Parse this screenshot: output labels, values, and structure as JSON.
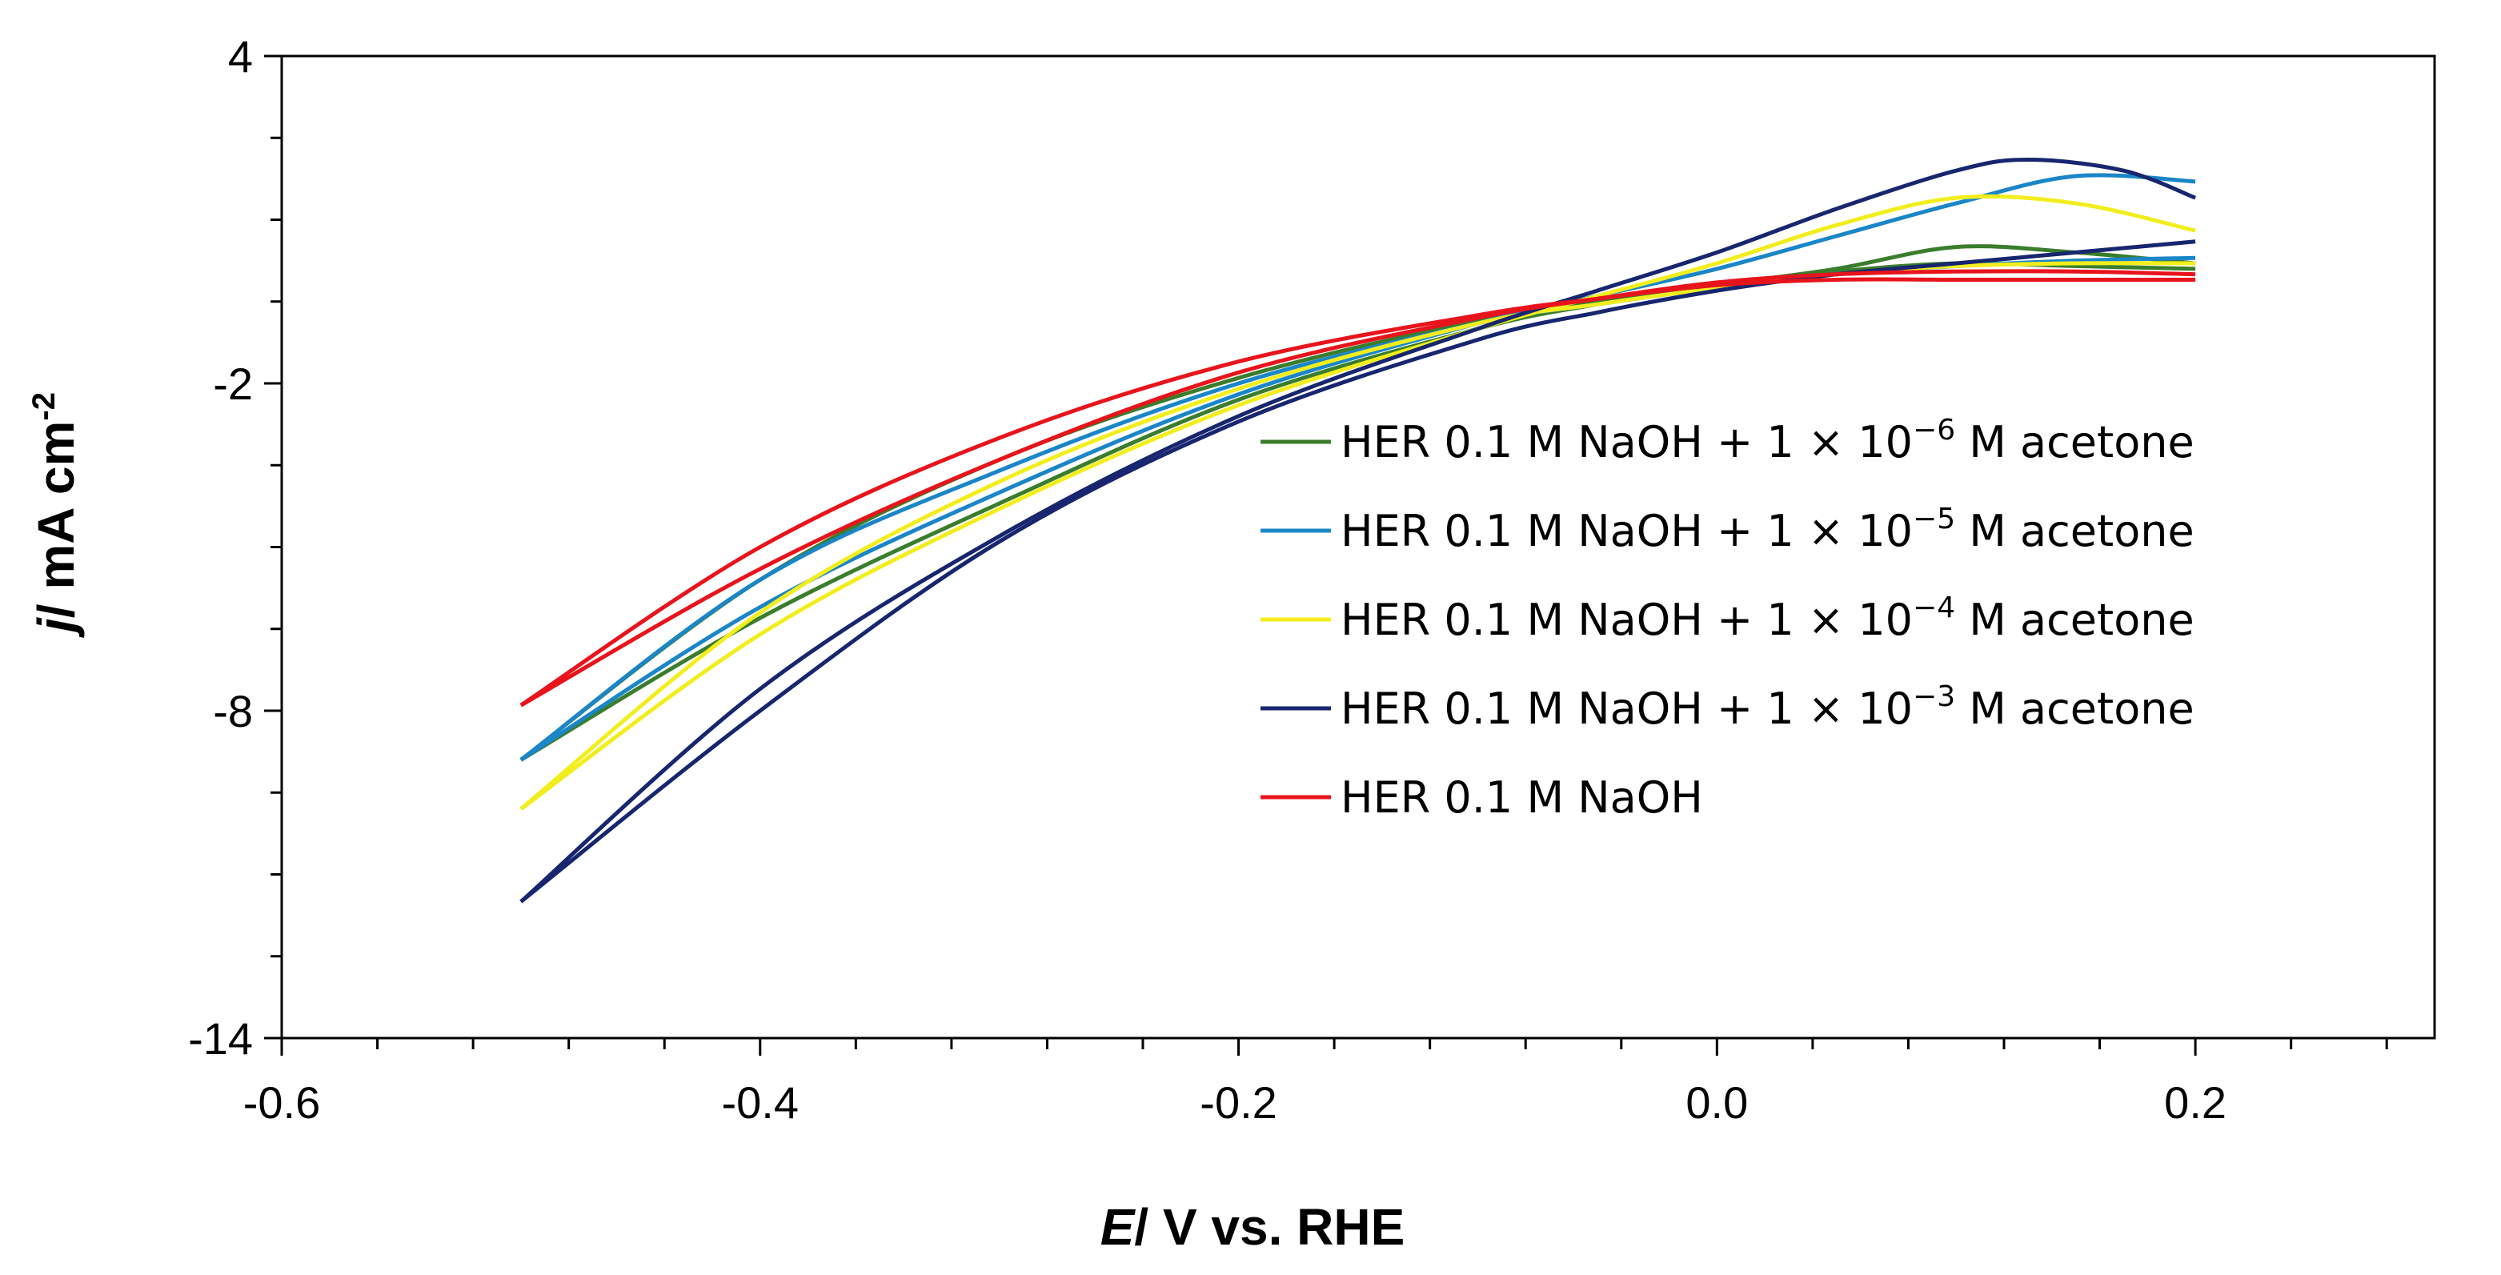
{
  "chart_data": {
    "type": "line",
    "title": "",
    "xlabel": {
      "italic": "E",
      "rest": "/ V  vs. RHE"
    },
    "ylabel": {
      "italic": "j",
      "rest": "/ mA cm",
      "sup": "-2"
    },
    "xlim": [
      -0.6,
      0.3
    ],
    "ylim": [
      -14,
      4
    ],
    "xticks": [
      -0.6,
      -0.4,
      -0.2,
      0.0,
      0.2
    ],
    "xtick_labels": [
      "-0.6",
      "-0.4",
      "-0.2",
      "0.0",
      "0.2"
    ],
    "yticks": [
      4,
      -2,
      -8,
      -14
    ],
    "ytick_labels": [
      "4",
      "-2",
      "-8",
      "-14"
    ],
    "grid": false,
    "legend_position": "center-right",
    "series": [
      {
        "name": "HER 0.1 M NaOH + 1 × 10⁻⁶ M acetone",
        "legend_pre": "HER 0.1 M NaOH + 1 × 10",
        "legend_sup": "−6",
        "legend_post": " M acetone",
        "color": "#3a7d2c",
        "cathodic": [
          [
            0.2,
            0.1
          ],
          [
            0.15,
            0.15
          ],
          [
            0.1,
            0.2
          ],
          [
            0.05,
            0.05
          ],
          [
            0.0,
            -0.2
          ],
          [
            -0.05,
            -0.5
          ],
          [
            -0.1,
            -0.85
          ],
          [
            -0.2,
            -1.9
          ],
          [
            -0.3,
            -3.4
          ],
          [
            -0.4,
            -5.6
          ],
          [
            -0.5,
            -8.9
          ]
        ],
        "anodic": [
          [
            -0.5,
            -8.9
          ],
          [
            -0.4,
            -6.3
          ],
          [
            -0.3,
            -4.2
          ],
          [
            -0.2,
            -2.3
          ],
          [
            -0.1,
            -1.0
          ],
          [
            -0.05,
            -0.55
          ],
          [
            0.0,
            -0.2
          ],
          [
            0.05,
            0.1
          ],
          [
            0.1,
            0.5
          ],
          [
            0.15,
            0.4
          ],
          [
            0.2,
            0.2
          ]
        ]
      },
      {
        "name": "HER 0.1 M NaOH + 1 × 10⁻⁵ M acetone",
        "legend_pre": "HER 0.1 M NaOH + 1 × 10",
        "legend_sup": "−5",
        "legend_post": " M acetone",
        "color": "#1a86c8",
        "cathodic": [
          [
            0.2,
            0.3
          ],
          [
            0.15,
            0.25
          ],
          [
            0.1,
            0.15
          ],
          [
            0.05,
            0.0
          ],
          [
            0.0,
            -0.25
          ],
          [
            -0.05,
            -0.55
          ],
          [
            -0.1,
            -0.9
          ],
          [
            -0.2,
            -2.0
          ],
          [
            -0.3,
            -3.6
          ],
          [
            -0.4,
            -5.6
          ],
          [
            -0.5,
            -8.9
          ]
        ],
        "anodic": [
          [
            -0.5,
            -8.9
          ],
          [
            -0.4,
            -6.1
          ],
          [
            -0.3,
            -4.0
          ],
          [
            -0.2,
            -2.2
          ],
          [
            -0.1,
            -0.9
          ],
          [
            -0.05,
            -0.4
          ],
          [
            0.0,
            0.1
          ],
          [
            0.05,
            0.7
          ],
          [
            0.1,
            1.3
          ],
          [
            0.15,
            1.8
          ],
          [
            0.2,
            1.7
          ]
        ]
      },
      {
        "name": "HER 0.1 M NaOH + 1 × 10⁻⁴ M acetone",
        "legend_pre": "HER 0.1 M NaOH + 1 × 10",
        "legend_sup": "−4",
        "legend_post": " M acetone",
        "color": "#f2ee1e",
        "cathodic": [
          [
            0.2,
            0.2
          ],
          [
            0.15,
            0.2
          ],
          [
            0.1,
            0.15
          ],
          [
            0.05,
            0.0
          ],
          [
            0.0,
            -0.25
          ],
          [
            -0.05,
            -0.55
          ],
          [
            -0.1,
            -0.9
          ],
          [
            -0.2,
            -2.1
          ],
          [
            -0.3,
            -3.8
          ],
          [
            -0.4,
            -6.2
          ],
          [
            -0.5,
            -9.8
          ]
        ],
        "anodic": [
          [
            -0.5,
            -9.8
          ],
          [
            -0.4,
            -6.6
          ],
          [
            -0.3,
            -4.3
          ],
          [
            -0.2,
            -2.4
          ],
          [
            -0.1,
            -1.0
          ],
          [
            -0.05,
            -0.4
          ],
          [
            0.0,
            0.2
          ],
          [
            0.05,
            0.9
          ],
          [
            0.1,
            1.4
          ],
          [
            0.15,
            1.3
          ],
          [
            0.2,
            0.8
          ]
        ]
      },
      {
        "name": "HER 0.1 M NaOH + 1 × 10⁻³ M acetone",
        "legend_pre": "HER 0.1 M NaOH + 1 × 10",
        "legend_sup": "−3",
        "legend_post": " M acetone",
        "color": "#17266e",
        "cathodic": [
          [
            0.2,
            0.6
          ],
          [
            0.15,
            0.4
          ],
          [
            0.1,
            0.2
          ],
          [
            0.05,
            0.0
          ],
          [
            0.0,
            -0.3
          ],
          [
            -0.05,
            -0.7
          ],
          [
            -0.1,
            -1.2
          ],
          [
            -0.2,
            -2.7
          ],
          [
            -0.3,
            -4.9
          ],
          [
            -0.4,
            -8.0
          ],
          [
            -0.5,
            -11.5
          ]
        ],
        "anodic": [
          [
            -0.5,
            -11.5
          ],
          [
            -0.4,
            -7.6
          ],
          [
            -0.3,
            -4.8
          ],
          [
            -0.2,
            -2.6
          ],
          [
            -0.1,
            -1.0
          ],
          [
            -0.05,
            -0.3
          ],
          [
            0.0,
            0.4
          ],
          [
            0.05,
            1.2
          ],
          [
            0.1,
            1.9
          ],
          [
            0.13,
            2.1
          ],
          [
            0.17,
            1.9
          ],
          [
            0.2,
            1.4
          ]
        ]
      },
      {
        "name": "HER 0.1 M NaOH",
        "legend_pre": "HER 0.1 M NaOH",
        "legend_sup": "",
        "legend_post": "",
        "color": "#e8141c",
        "cathodic": [
          [
            0.2,
            -0.1
          ],
          [
            0.15,
            -0.1
          ],
          [
            0.1,
            -0.1
          ],
          [
            0.05,
            -0.1
          ],
          [
            0.0,
            -0.2
          ],
          [
            -0.05,
            -0.45
          ],
          [
            -0.1,
            -0.75
          ],
          [
            -0.2,
            -1.6
          ],
          [
            -0.3,
            -3.0
          ],
          [
            -0.4,
            -5.0
          ],
          [
            -0.5,
            -7.9
          ]
        ],
        "anodic": [
          [
            -0.5,
            -7.9
          ],
          [
            -0.4,
            -5.4
          ],
          [
            -0.3,
            -3.4
          ],
          [
            -0.2,
            -1.8
          ],
          [
            -0.1,
            -0.8
          ],
          [
            -0.05,
            -0.45
          ],
          [
            0.0,
            -0.15
          ],
          [
            0.05,
            0.0
          ],
          [
            0.1,
            0.05
          ],
          [
            0.15,
            0.05
          ],
          [
            0.2,
            0.0
          ]
        ]
      }
    ]
  }
}
